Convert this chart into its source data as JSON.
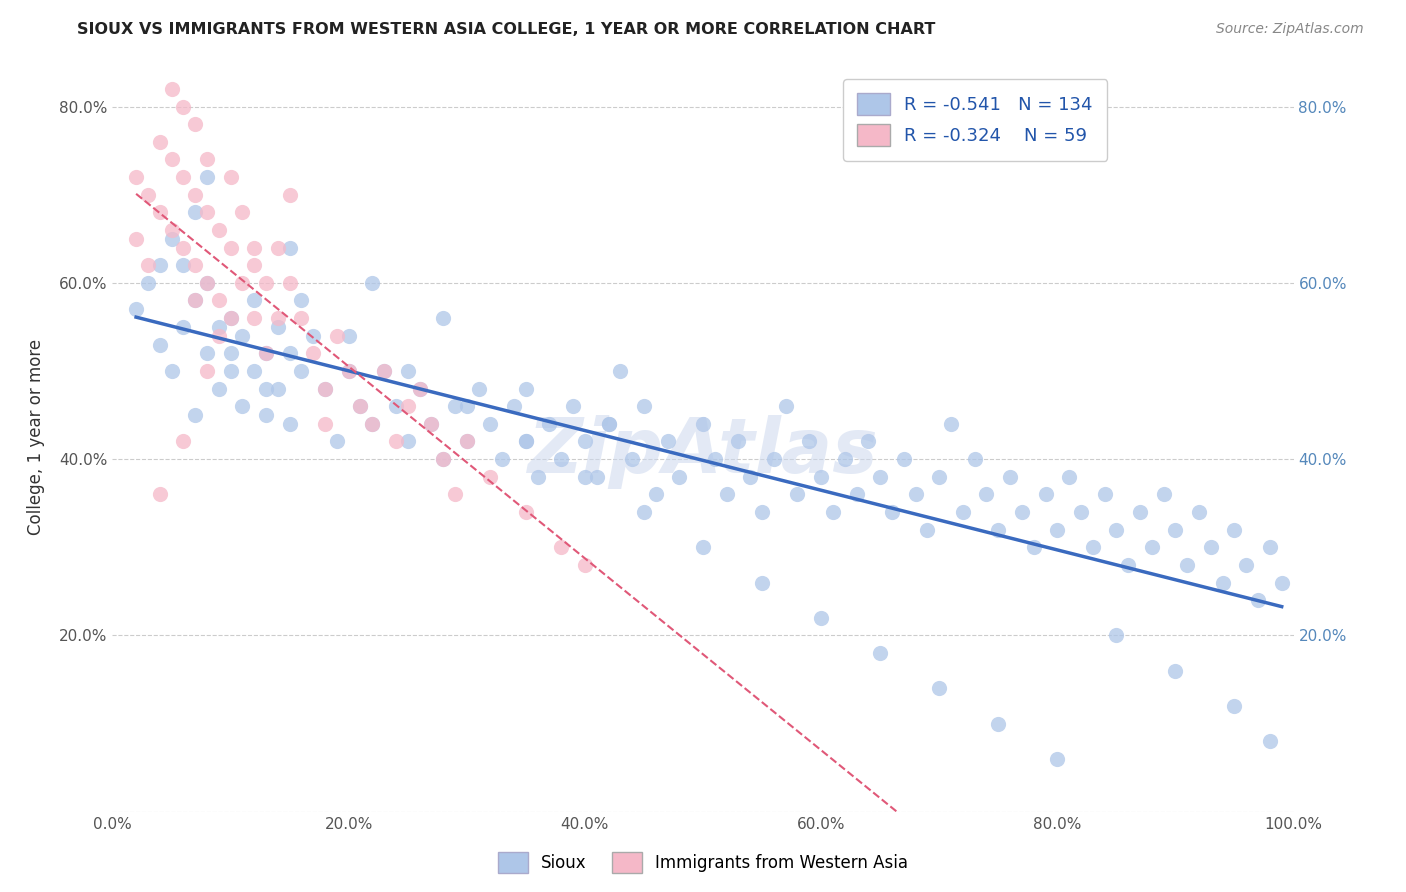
{
  "title": "SIOUX VS IMMIGRANTS FROM WESTERN ASIA COLLEGE, 1 YEAR OR MORE CORRELATION CHART",
  "source": "Source: ZipAtlas.com",
  "ylabel": "College, 1 year or more",
  "xlim": [
    0.0,
    1.0
  ],
  "ylim": [
    0.0,
    0.85
  ],
  "xticks": [
    0.0,
    0.2,
    0.4,
    0.6,
    0.8,
    1.0
  ],
  "yticks": [
    0.0,
    0.2,
    0.4,
    0.6,
    0.8
  ],
  "xtick_labels": [
    "0.0%",
    "20.0%",
    "40.0%",
    "60.0%",
    "80.0%",
    "100.0%"
  ],
  "ytick_labels": [
    "",
    "20.0%",
    "40.0%",
    "60.0%",
    "80.0%"
  ],
  "right_ytick_labels": [
    "",
    "20.0%",
    "40.0%",
    "60.0%",
    "80.0%"
  ],
  "legend_R1": "-0.541",
  "legend_N1": "134",
  "legend_R2": "-0.324",
  "legend_N2": "59",
  "blue_color": "#aec6e8",
  "pink_color": "#f5b8c8",
  "blue_line_color": "#3a6abf",
  "pink_line_color": "#e05878",
  "background_color": "#ffffff",
  "grid_color": "#cccccc",
  "watermark": "ZipAtlas",
  "blue_scatter_x": [
    0.02,
    0.03,
    0.04,
    0.05,
    0.05,
    0.06,
    0.06,
    0.07,
    0.07,
    0.08,
    0.08,
    0.09,
    0.09,
    0.1,
    0.1,
    0.11,
    0.11,
    0.12,
    0.12,
    0.13,
    0.13,
    0.14,
    0.14,
    0.15,
    0.15,
    0.16,
    0.17,
    0.18,
    0.19,
    0.2,
    0.21,
    0.22,
    0.23,
    0.24,
    0.25,
    0.26,
    0.27,
    0.28,
    0.29,
    0.3,
    0.31,
    0.32,
    0.33,
    0.34,
    0.35,
    0.36,
    0.37,
    0.38,
    0.39,
    0.4,
    0.41,
    0.42,
    0.43,
    0.44,
    0.45,
    0.46,
    0.47,
    0.48,
    0.5,
    0.51,
    0.52,
    0.53,
    0.54,
    0.55,
    0.56,
    0.57,
    0.58,
    0.59,
    0.6,
    0.61,
    0.62,
    0.63,
    0.64,
    0.65,
    0.66,
    0.67,
    0.68,
    0.69,
    0.7,
    0.71,
    0.72,
    0.73,
    0.74,
    0.75,
    0.76,
    0.77,
    0.78,
    0.79,
    0.8,
    0.81,
    0.82,
    0.83,
    0.84,
    0.85,
    0.86,
    0.87,
    0.88,
    0.89,
    0.9,
    0.91,
    0.92,
    0.93,
    0.94,
    0.95,
    0.96,
    0.97,
    0.98,
    0.99,
    0.04,
    0.07,
    0.1,
    0.13,
    0.16,
    0.2,
    0.25,
    0.3,
    0.35,
    0.4,
    0.45,
    0.5,
    0.55,
    0.6,
    0.65,
    0.7,
    0.75,
    0.8,
    0.85,
    0.9,
    0.95,
    0.98,
    0.08,
    0.15,
    0.22,
    0.28,
    0.35,
    0.42
  ],
  "blue_scatter_y": [
    0.57,
    0.6,
    0.53,
    0.65,
    0.5,
    0.62,
    0.55,
    0.58,
    0.45,
    0.6,
    0.52,
    0.55,
    0.48,
    0.56,
    0.5,
    0.54,
    0.46,
    0.58,
    0.5,
    0.52,
    0.45,
    0.55,
    0.48,
    0.52,
    0.44,
    0.5,
    0.54,
    0.48,
    0.42,
    0.5,
    0.46,
    0.44,
    0.5,
    0.46,
    0.42,
    0.48,
    0.44,
    0.4,
    0.46,
    0.42,
    0.48,
    0.44,
    0.4,
    0.46,
    0.42,
    0.38,
    0.44,
    0.4,
    0.46,
    0.42,
    0.38,
    0.44,
    0.5,
    0.4,
    0.46,
    0.36,
    0.42,
    0.38,
    0.44,
    0.4,
    0.36,
    0.42,
    0.38,
    0.34,
    0.4,
    0.46,
    0.36,
    0.42,
    0.38,
    0.34,
    0.4,
    0.36,
    0.42,
    0.38,
    0.34,
    0.4,
    0.36,
    0.32,
    0.38,
    0.44,
    0.34,
    0.4,
    0.36,
    0.32,
    0.38,
    0.34,
    0.3,
    0.36,
    0.32,
    0.38,
    0.34,
    0.3,
    0.36,
    0.32,
    0.28,
    0.34,
    0.3,
    0.36,
    0.32,
    0.28,
    0.34,
    0.3,
    0.26,
    0.32,
    0.28,
    0.24,
    0.3,
    0.26,
    0.62,
    0.68,
    0.52,
    0.48,
    0.58,
    0.54,
    0.5,
    0.46,
    0.42,
    0.38,
    0.34,
    0.3,
    0.26,
    0.22,
    0.18,
    0.14,
    0.1,
    0.06,
    0.2,
    0.16,
    0.12,
    0.08,
    0.72,
    0.64,
    0.6,
    0.56,
    0.48,
    0.44
  ],
  "pink_scatter_x": [
    0.02,
    0.02,
    0.03,
    0.03,
    0.04,
    0.04,
    0.05,
    0.05,
    0.06,
    0.06,
    0.06,
    0.07,
    0.07,
    0.07,
    0.08,
    0.08,
    0.08,
    0.09,
    0.09,
    0.1,
    0.1,
    0.11,
    0.11,
    0.12,
    0.12,
    0.13,
    0.13,
    0.14,
    0.14,
    0.15,
    0.16,
    0.17,
    0.18,
    0.19,
    0.2,
    0.21,
    0.22,
    0.23,
    0.24,
    0.25,
    0.26,
    0.27,
    0.28,
    0.29,
    0.3,
    0.32,
    0.35,
    0.38,
    0.4,
    0.18,
    0.1,
    0.07,
    0.05,
    0.08,
    0.12,
    0.15,
    0.06,
    0.04,
    0.09
  ],
  "pink_scatter_y": [
    0.72,
    0.65,
    0.7,
    0.62,
    0.76,
    0.68,
    0.74,
    0.66,
    0.72,
    0.64,
    0.8,
    0.7,
    0.62,
    0.78,
    0.68,
    0.6,
    0.74,
    0.66,
    0.58,
    0.64,
    0.72,
    0.6,
    0.68,
    0.56,
    0.64,
    0.6,
    0.52,
    0.56,
    0.64,
    0.6,
    0.56,
    0.52,
    0.48,
    0.54,
    0.5,
    0.46,
    0.44,
    0.5,
    0.42,
    0.46,
    0.48,
    0.44,
    0.4,
    0.36,
    0.42,
    0.38,
    0.34,
    0.3,
    0.28,
    0.44,
    0.56,
    0.58,
    0.82,
    0.5,
    0.62,
    0.7,
    0.42,
    0.36,
    0.54
  ]
}
